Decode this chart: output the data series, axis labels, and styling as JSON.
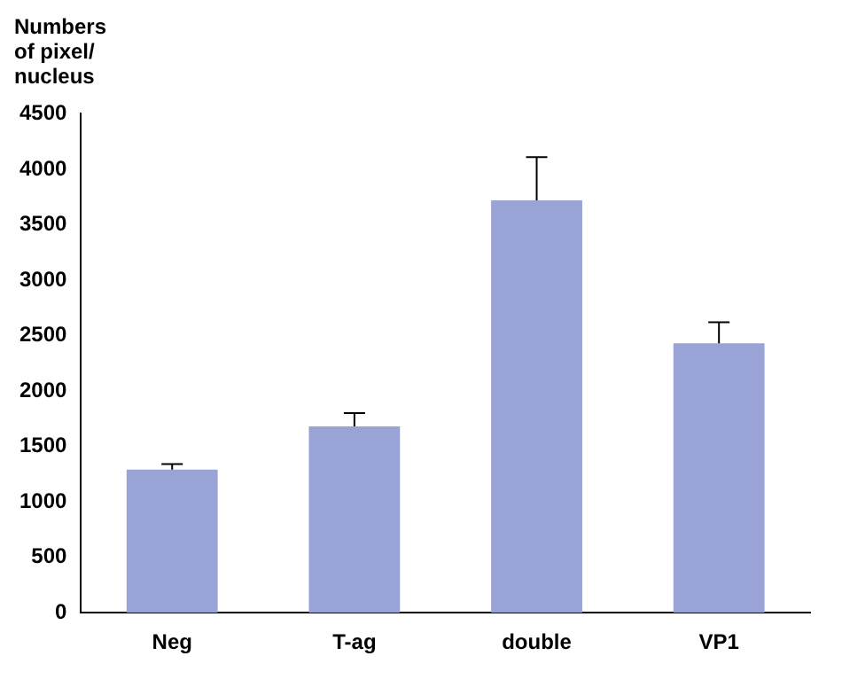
{
  "chart_data": {
    "type": "bar",
    "ylabel": "Numbers of pixel/ nucleus",
    "categories": [
      "Neg",
      "T-ag",
      "double",
      "VP1"
    ],
    "values": [
      1290,
      1680,
      3720,
      2430
    ],
    "errors": [
      [
        1290,
        1340
      ],
      [
        1680,
        1800
      ],
      [
        3720,
        4110
      ],
      [
        2430,
        2620
      ]
    ],
    "color": "#99a3d6",
    "ylim": [
      0,
      4500
    ],
    "yticks": [
      0,
      500,
      1000,
      1500,
      2000,
      2500,
      3000,
      3500,
      4000,
      4500
    ],
    "grid": false,
    "legend": false
  }
}
